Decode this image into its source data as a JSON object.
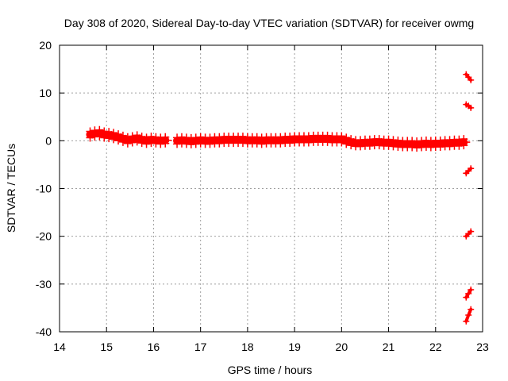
{
  "chart_data": {
    "type": "scatter",
    "title": "Day 308 of 2020, Sidereal Day-to-day VTEC variation (SDTVAR) for receiver owmg",
    "xlabel": "GPS time / hours",
    "ylabel": "SDTVAR / TECUs",
    "xlim": [
      14,
      23
    ],
    "ylim": [
      -40,
      20
    ],
    "xticks": [
      "14",
      "15",
      "16",
      "17",
      "18",
      "19",
      "20",
      "21",
      "22",
      "23"
    ],
    "yticks": [
      "20",
      "10",
      "0",
      "-10",
      "-20",
      "-30",
      "-40"
    ],
    "grid": true,
    "marker": "plus",
    "series": [
      {
        "name": "SDTVAR main track",
        "color": "#ff0000",
        "x": [
          14.65,
          14.75,
          14.85,
          14.95,
          15.05,
          15.15,
          15.25,
          15.35,
          15.45,
          15.55,
          15.65,
          15.75,
          15.85,
          15.95,
          16.05,
          16.15,
          16.25,
          16.5,
          16.6,
          16.7,
          16.8,
          16.9,
          17.0,
          17.1,
          17.2,
          17.3,
          17.4,
          17.5,
          17.6,
          17.7,
          17.8,
          17.9,
          18.0,
          18.1,
          18.2,
          18.3,
          18.4,
          18.5,
          18.6,
          18.7,
          18.8,
          18.9,
          19.0,
          19.1,
          19.2,
          19.3,
          19.4,
          19.5,
          19.6,
          19.7,
          19.8,
          19.9,
          20.0,
          20.1,
          20.2,
          20.3,
          20.4,
          20.5,
          20.6,
          20.7,
          20.8,
          20.9,
          21.0,
          21.1,
          21.2,
          21.3,
          21.4,
          21.5,
          21.6,
          21.7,
          21.8,
          21.9,
          22.0,
          22.1,
          22.2,
          22.3,
          22.4,
          22.5,
          22.6
        ],
        "y": [
          1.3,
          1.5,
          1.6,
          1.3,
          1.2,
          1.0,
          0.7,
          0.4,
          0.1,
          0.3,
          0.5,
          0.2,
          0.0,
          0.2,
          0.1,
          0.0,
          0.1,
          0.0,
          0.1,
          0.0,
          -0.1,
          0.0,
          0.1,
          0.0,
          0.0,
          0.1,
          0.1,
          0.2,
          0.2,
          0.2,
          0.2,
          0.2,
          0.1,
          0.1,
          0.1,
          0.0,
          0.1,
          0.1,
          0.1,
          0.1,
          0.2,
          0.2,
          0.3,
          0.3,
          0.3,
          0.3,
          0.4,
          0.4,
          0.4,
          0.4,
          0.3,
          0.3,
          0.3,
          0.0,
          -0.3,
          -0.5,
          -0.5,
          -0.4,
          -0.4,
          -0.3,
          -0.3,
          -0.4,
          -0.4,
          -0.5,
          -0.6,
          -0.7,
          -0.7,
          -0.7,
          -0.8,
          -0.7,
          -0.6,
          -0.7,
          -0.6,
          -0.6,
          -0.5,
          -0.5,
          -0.4,
          -0.4,
          -0.3
        ]
      },
      {
        "name": "SDTVAR end arcs",
        "color": "#ff0000",
        "x": [
          22.65,
          22.7,
          22.75,
          22.65,
          22.7,
          22.75,
          22.65,
          22.7,
          22.75,
          22.65,
          22.7,
          22.75,
          22.65,
          22.7,
          22.75,
          22.65,
          22.7,
          22.75
        ],
        "y": [
          13.9,
          13.3,
          12.7,
          7.6,
          7.3,
          6.9,
          -6.8,
          -6.3,
          -5.8,
          -20.0,
          -19.5,
          -19.0,
          -32.8,
          -32.0,
          -31.2,
          -37.8,
          -36.5,
          -35.3
        ]
      }
    ]
  }
}
